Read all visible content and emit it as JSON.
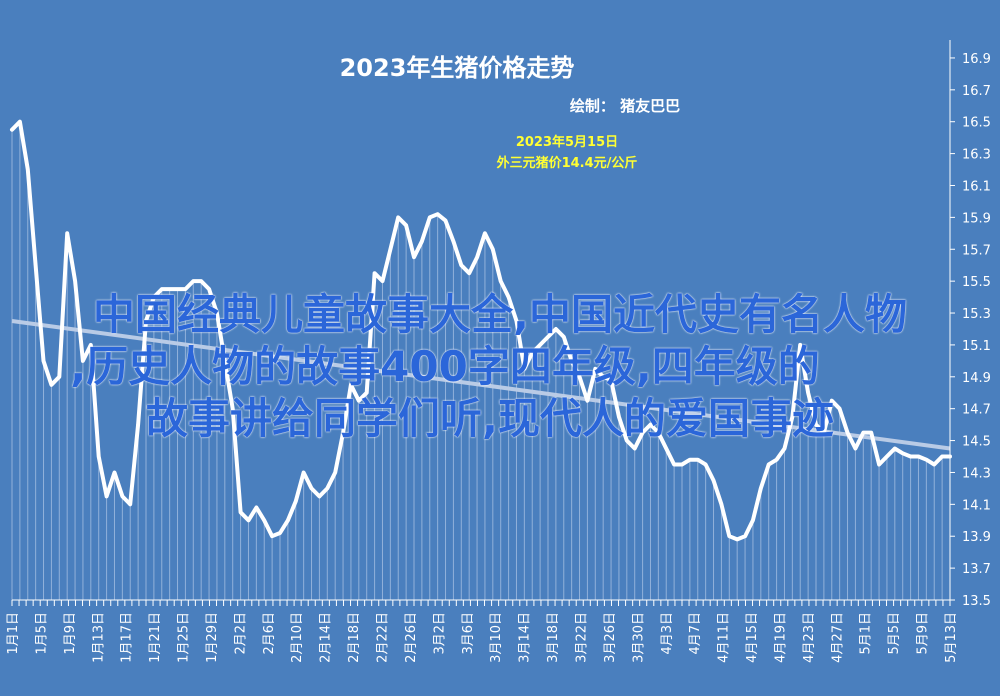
{
  "colors": {
    "background": "#4a7fbe",
    "line": "#ffffff",
    "trendline": "#b9cbe6",
    "annotation": "#ffff33",
    "overlay_text": "#2b66d9"
  },
  "overlay_text": {
    "line1": "中国经典儿童故事大全,中国近代史有名人物",
    "line2": ",历史人物的故事400字四年级,四年级的",
    "line3": "故事讲给同学们听,现代人的爱国事迹"
  },
  "chart_data": {
    "type": "line",
    "title": "2023年生猪价格走势",
    "subtitle": "绘制：  猪友巴巴",
    "annotation": [
      "2023年5月15日",
      "外三元猪价14.4元/公斤"
    ],
    "xlabel": "",
    "ylabel": "",
    "ylim": [
      13.5,
      17.0
    ],
    "y_ticks": [
      "13.5",
      "13.7",
      "13.9",
      "14.1",
      "14.3",
      "14.5",
      "14.7",
      "14.9",
      "15.1",
      "15.3",
      "15.5",
      "15.7",
      "15.9",
      "16.1",
      "16.3",
      "16.5",
      "16.7",
      "16.9"
    ],
    "x_ticks": [
      "1月1日",
      "1月5日",
      "1月9日",
      "1月13日",
      "1月17日",
      "1月21日",
      "1月25日",
      "1月29日",
      "2月2日",
      "2月6日",
      "2月10日",
      "2月14日",
      "2月18日",
      "2月22日",
      "2月26日",
      "3月2日",
      "3月6日",
      "3月10日",
      "3月14日",
      "3月18日",
      "3月22日",
      "3月26日",
      "3月30日",
      "4月3日",
      "4月7日",
      "4月11日",
      "4月15日",
      "4月19日",
      "4月23日",
      "4月27日",
      "5月1日",
      "5月5日",
      "5月9日",
      "5月13日"
    ],
    "y_axis_position": "right",
    "grid": false,
    "trendline": {
      "start": 15.25,
      "end": 14.45
    },
    "series": [
      {
        "values": [
          16.45,
          16.5,
          16.2,
          15.6,
          15.0,
          14.85,
          14.9,
          15.8,
          15.5,
          15.0,
          15.1,
          14.4,
          14.15,
          14.3,
          14.15,
          14.1,
          14.6,
          15.25,
          15.4,
          15.45,
          15.45,
          15.45,
          15.45,
          15.5,
          15.5,
          15.45,
          15.3,
          15.0,
          14.7,
          14.05,
          14.0,
          14.08,
          14.0,
          13.9,
          13.92,
          14.0,
          14.12,
          14.3,
          14.2,
          14.15,
          14.2,
          14.3,
          14.55,
          14.85,
          14.75,
          14.8,
          15.55,
          15.5,
          15.7,
          15.9,
          15.85,
          15.65,
          15.75,
          15.9,
          15.92,
          15.88,
          15.75,
          15.6,
          15.55,
          15.65,
          15.8,
          15.7,
          15.5,
          15.4,
          15.25,
          14.95,
          15.05,
          15.1,
          15.15,
          15.2,
          15.15,
          15.0,
          14.9,
          14.75,
          14.95,
          14.9,
          14.88,
          14.65,
          14.5,
          14.45,
          14.55,
          14.6,
          14.55,
          14.45,
          14.35,
          14.35,
          14.38,
          14.38,
          14.35,
          14.25,
          14.1,
          13.9,
          13.88,
          13.9,
          14.0,
          14.2,
          14.35,
          14.38,
          14.45,
          14.65,
          15.1,
          14.8,
          14.6,
          14.55,
          14.75,
          14.7,
          14.55,
          14.45,
          14.55,
          14.55,
          14.35,
          14.4,
          14.45,
          14.42,
          14.4,
          14.4,
          14.38,
          14.35,
          14.4,
          14.4
        ]
      }
    ]
  }
}
